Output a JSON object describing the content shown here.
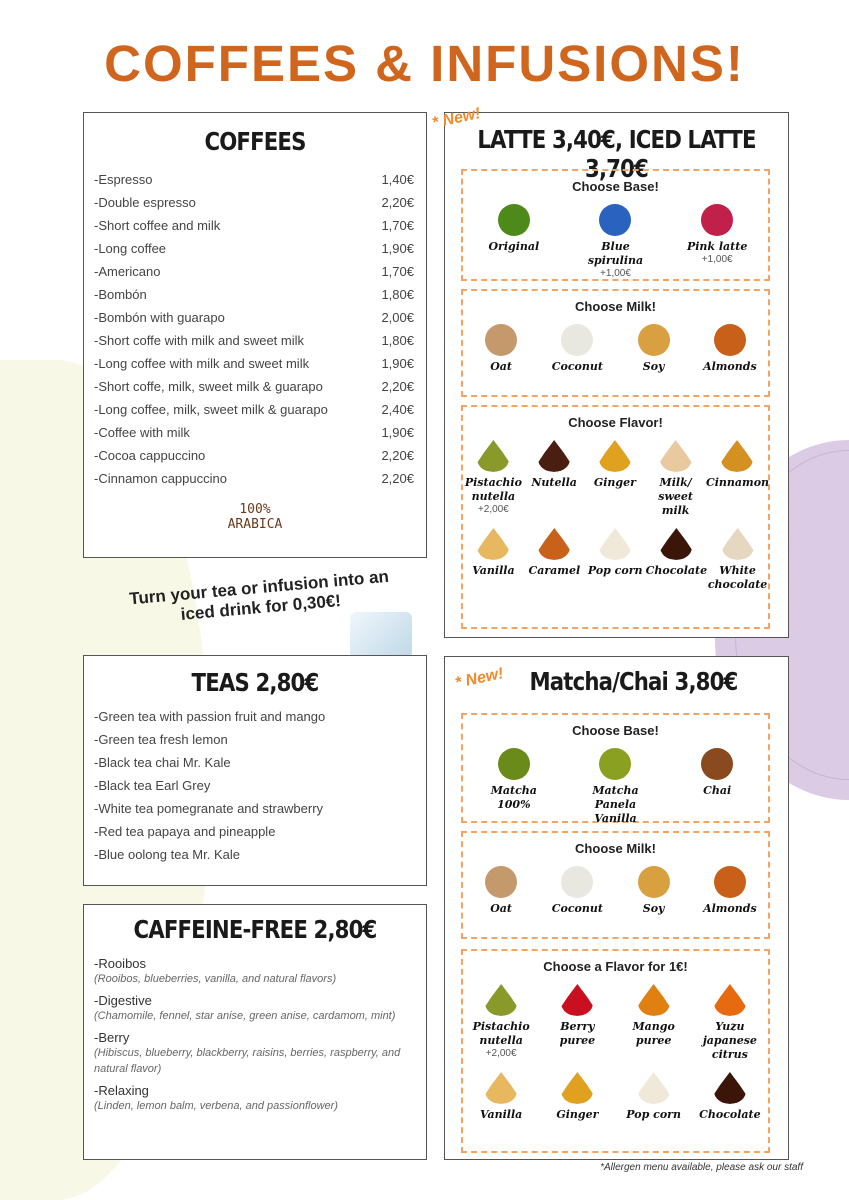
{
  "title": "COFFEES & INFUSIONS!",
  "coffees": {
    "heading": "COFFEES",
    "items": [
      {
        "name": "Espresso",
        "price": "1,40€"
      },
      {
        "name": "Double espresso",
        "price": "2,20€"
      },
      {
        "name": "Short coffee and milk",
        "price": "1,70€"
      },
      {
        "name": "Long coffee",
        "price": "1,90€"
      },
      {
        "name": "Americano",
        "price": "1,70€"
      },
      {
        "name": "Bombón",
        "price": "1,80€"
      },
      {
        "name": "Bombón with guarapo",
        "price": "2,00€"
      },
      {
        "name": "Short coffe with milk and sweet milk",
        "price": "1,80€"
      },
      {
        "name": "Long coffee with milk and sweet milk",
        "price": "1,90€"
      },
      {
        "name": "Short coffe, milk, sweet milk & guarapo",
        "price": "2,20€"
      },
      {
        "name": "Long coffee, milk, sweet milk & guarapo",
        "price": "2,40€"
      },
      {
        "name": "Coffee with milk",
        "price": "1,90€"
      },
      {
        "name": "Cocoa cappuccino",
        "price": "2,20€"
      },
      {
        "name": "Cinnamon cappuccino",
        "price": "2,20€"
      }
    ],
    "badge": {
      "line1": "100%",
      "line2": "ARABICA"
    }
  },
  "iced_note": {
    "line1": "Turn your tea or infusion into an",
    "line2": "iced drink for 0,30€!"
  },
  "teas": {
    "heading": "TEAS 2,80€",
    "items": [
      "Green tea with passion fruit and mango",
      "Green tea fresh lemon",
      "Black tea chai Mr. Kale",
      "Black tea Earl Grey",
      "White tea pomegranate and strawberry",
      "Red tea papaya and pineapple",
      "Blue oolong tea Mr. Kale"
    ]
  },
  "caffeine_free": {
    "heading": "CAFFEINE-FREE 2,80€",
    "items": [
      {
        "name": "Rooibos",
        "desc": "(Rooibos, blueberries, vanilla, and natural flavors)"
      },
      {
        "name": "Digestive",
        "desc": "(Chamomile, fennel, star anise, green anise, cardamom, mint)"
      },
      {
        "name": "Berry",
        "desc": "(Hibiscus, blueberry, blackberry, raisins, berries, raspberry, and natural flavor)"
      },
      {
        "name": "Relaxing",
        "desc": "(Linden, lemon balm, verbena, and passionflower)"
      }
    ]
  },
  "latte": {
    "new_badge": "* New!",
    "heading": "LATTE 3,40€, ICED LATTE 3,70€",
    "sections": [
      {
        "title": "Choose Base!",
        "rows": [
          [
            {
              "name": "Original",
              "color": "#4e8a1a",
              "shape": "circle"
            },
            {
              "name": "Blue spirulina",
              "extra": "+1,00€",
              "color": "#2a62c0",
              "shape": "circle"
            },
            {
              "name": "Pink latte",
              "extra": "+1,00€",
              "color": "#c0204a",
              "shape": "circle"
            }
          ]
        ]
      },
      {
        "title": "Choose Milk!",
        "rows": [
          [
            {
              "name": "Oat",
              "color": "#c49a6c",
              "shape": "circle"
            },
            {
              "name": "Coconut",
              "color": "#e8e8e0",
              "shape": "circle"
            },
            {
              "name": "Soy",
              "color": "#d8a040",
              "shape": "circle"
            },
            {
              "name": "Almonds",
              "color": "#c8601a",
              "shape": "circle"
            }
          ]
        ]
      },
      {
        "title": "Choose Flavor!",
        "rows": [
          [
            {
              "name": "Pistachio nutella",
              "extra": "+2,00€",
              "color": "#8a9a2a",
              "shape": "drop"
            },
            {
              "name": "Nutella",
              "color": "#4a1e10",
              "shape": "drop"
            },
            {
              "name": "Ginger",
              "color": "#e0a020",
              "shape": "drop"
            },
            {
              "name": "Milk/ sweet milk",
              "color": "#e8c9a0",
              "shape": "drop"
            },
            {
              "name": "Cinnamon",
              "color": "#d49020",
              "shape": "drop"
            }
          ],
          [
            {
              "name": "Vanilla",
              "color": "#e8b860",
              "shape": "drop"
            },
            {
              "name": "Caramel",
              "color": "#c8621a",
              "shape": "drop"
            },
            {
              "name": "Pop corn",
              "color": "#f0e8d8",
              "shape": "drop"
            },
            {
              "name": "Chocolate",
              "color": "#3a1508",
              "shape": "drop"
            },
            {
              "name": "White chocolate",
              "color": "#e6d8c0",
              "shape": "drop"
            }
          ]
        ]
      }
    ]
  },
  "matcha": {
    "new_badge": "* New!",
    "heading": "Matcha/Chai 3,80€",
    "sections": [
      {
        "title": "Choose Base!",
        "rows": [
          [
            {
              "name": "Matcha 100%",
              "color": "#6a8a1a",
              "shape": "circle"
            },
            {
              "name": "Matcha Panela Vanilla",
              "color": "#8aa020",
              "shape": "circle"
            },
            {
              "name": "Chai",
              "color": "#8a4a20",
              "shape": "circle"
            }
          ]
        ]
      },
      {
        "title": "Choose Milk!",
        "rows": [
          [
            {
              "name": "Oat",
              "color": "#c49a6c",
              "shape": "circle"
            },
            {
              "name": "Coconut",
              "color": "#e8e8e0",
              "shape": "circle"
            },
            {
              "name": "Soy",
              "color": "#d8a040",
              "shape": "circle"
            },
            {
              "name": "Almonds",
              "color": "#c8601a",
              "shape": "circle"
            }
          ]
        ]
      },
      {
        "title": "Choose a Flavor for 1€!",
        "rows": [
          [
            {
              "name": "Pistachio nutella",
              "extra": "+2,00€",
              "color": "#8a9a2a",
              "shape": "drop"
            },
            {
              "name": "Berry puree",
              "color": "#c81020",
              "shape": "drop"
            },
            {
              "name": "Mango puree",
              "color": "#e08010",
              "shape": "drop"
            },
            {
              "name": "Yuzu japanese citrus",
              "color": "#e86a10",
              "shape": "drop"
            }
          ],
          [
            {
              "name": "Vanilla",
              "color": "#e8b860",
              "shape": "drop"
            },
            {
              "name": "Ginger",
              "color": "#e0a020",
              "shape": "drop"
            },
            {
              "name": "Pop corn",
              "color": "#f0e8d8",
              "shape": "drop"
            },
            {
              "name": "Chocolate",
              "color": "#3a1508",
              "shape": "drop"
            }
          ]
        ]
      }
    ]
  },
  "footnote": "*Allergen menu available, please ask our staff"
}
